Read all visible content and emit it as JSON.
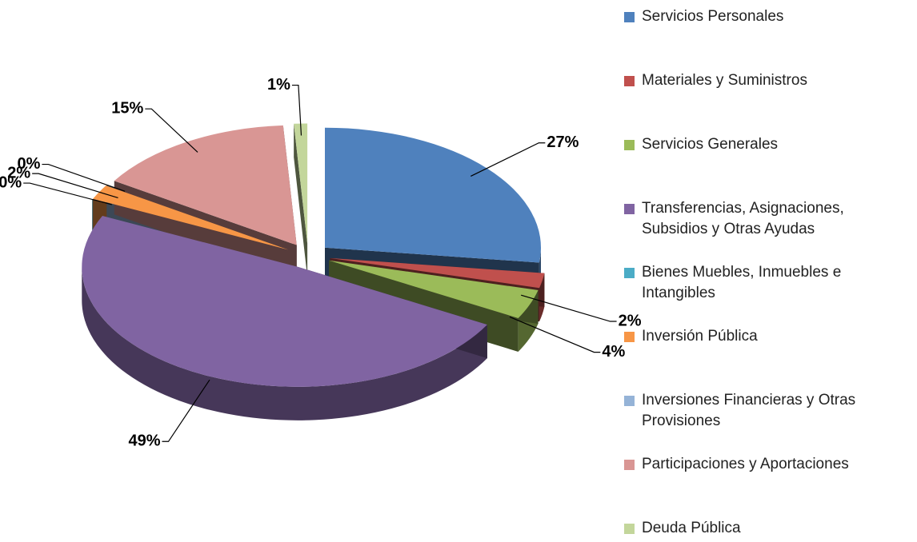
{
  "chart_data": {
    "type": "pie",
    "categories": [
      "Servicios Personales",
      "Materiales y Suministros",
      "Servicios Generales",
      "Transferencias, Asignaciones, Subsidios y Otras Ayudas",
      "Bienes Muebles, Inmuebles e Intangibles",
      "Inversión Pública",
      "Inversiones Financieras y Otras Provisiones",
      "Participaciones y Aportaciones",
      "Deuda Pública"
    ],
    "values": [
      27,
      2,
      4,
      49,
      0,
      2,
      0,
      15,
      1
    ],
    "value_labels": [
      "27%",
      "2%",
      "4%",
      "49%",
      "0%",
      "2%",
      "0%",
      "15%",
      "1%"
    ],
    "colors": [
      "#4f81bd",
      "#c0504d",
      "#9bbb59",
      "#8064a2",
      "#4bacc6",
      "#f79646",
      "#95b3d7",
      "#d99694",
      "#c3d69b"
    ],
    "legend": "right"
  }
}
